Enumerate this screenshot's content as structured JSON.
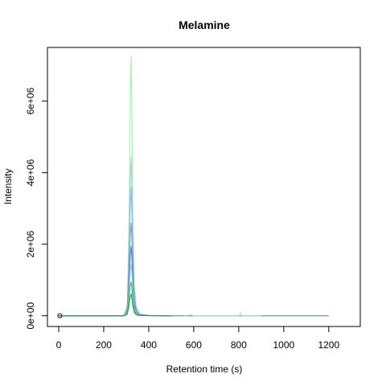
{
  "chart_data": {
    "type": "line",
    "title": "Melamine",
    "xlabel": "Retention time (s)",
    "ylabel": "Intensity",
    "xlim": [
      -50,
      1340
    ],
    "ylim": [
      -300000,
      7500000
    ],
    "x_ticks": [
      {
        "value": 0,
        "label": "0"
      },
      {
        "value": 200,
        "label": "200"
      },
      {
        "value": 400,
        "label": "400"
      },
      {
        "value": 600,
        "label": "600"
      },
      {
        "value": 800,
        "label": "800"
      },
      {
        "value": 1000,
        "label": "1000"
      },
      {
        "value": 1200,
        "label": "1200"
      }
    ],
    "y_ticks": [
      {
        "value": 0,
        "label": "0e+00"
      },
      {
        "value": 2000000,
        "label": "2e+06"
      },
      {
        "value": 4000000,
        "label": "4e+06"
      },
      {
        "value": 6000000,
        "label": "6e+06"
      }
    ],
    "grid": false,
    "legend": "none",
    "series": [
      {
        "color": "#90ee90",
        "x": [
          0,
          100,
          200,
          290,
          305,
          312,
          318,
          322,
          326,
          330,
          336,
          345,
          360,
          400,
          500
        ],
        "y": [
          0,
          0,
          0,
          0,
          300000,
          2500000,
          6000000,
          7250000,
          5200000,
          2800000,
          900000,
          250000,
          60000,
          10000,
          0
        ]
      },
      {
        "color": "#9fbfe8",
        "x": [
          0,
          100,
          200,
          290,
          305,
          312,
          318,
          322,
          326,
          330,
          336,
          345,
          360,
          400,
          500
        ],
        "y": [
          0,
          0,
          0,
          0,
          250000,
          1800000,
          3800000,
          4450000,
          3400000,
          1900000,
          700000,
          200000,
          50000,
          8000,
          0
        ]
      },
      {
        "color": "#8fb0ea",
        "x": [
          0,
          100,
          200,
          290,
          305,
          312,
          318,
          322,
          326,
          330,
          336,
          345,
          360,
          400,
          500
        ],
        "y": [
          0,
          0,
          0,
          0,
          200000,
          1400000,
          3000000,
          3600000,
          2700000,
          1500000,
          550000,
          160000,
          40000,
          6000,
          0
        ]
      },
      {
        "color": "#6d8fd6",
        "x": [
          0,
          100,
          200,
          290,
          305,
          312,
          318,
          322,
          326,
          330,
          336,
          345,
          360,
          400,
          500
        ],
        "y": [
          0,
          0,
          0,
          0,
          160000,
          1100000,
          2300000,
          2600000,
          2000000,
          1100000,
          400000,
          120000,
          30000,
          5000,
          0
        ]
      },
      {
        "color": "#4a72c8",
        "x": [
          0,
          100,
          200,
          290,
          305,
          312,
          318,
          322,
          326,
          330,
          336,
          345,
          360,
          400,
          500
        ],
        "y": [
          0,
          0,
          0,
          0,
          120000,
          800000,
          1700000,
          1950000,
          1500000,
          800000,
          300000,
          90000,
          20000,
          4000,
          0
        ]
      },
      {
        "color": "#8fe0b0",
        "x": [
          0,
          100,
          200,
          290,
          305,
          312,
          318,
          322,
          326,
          330,
          336,
          345,
          360,
          400,
          500
        ],
        "y": [
          0,
          0,
          0,
          0,
          100000,
          600000,
          1250000,
          1450000,
          1100000,
          600000,
          220000,
          70000,
          15000,
          3000,
          0
        ]
      },
      {
        "color": "#2ea84a",
        "x": [
          0,
          100,
          200,
          290,
          305,
          312,
          318,
          322,
          326,
          330,
          336,
          345,
          360,
          400,
          500
        ],
        "y": [
          0,
          0,
          0,
          0,
          60000,
          400000,
          850000,
          950000,
          700000,
          380000,
          140000,
          40000,
          10000,
          2000,
          0
        ]
      },
      {
        "color": "#1e8a5a",
        "x": [
          0,
          100,
          200,
          290,
          305,
          312,
          318,
          322,
          326,
          330,
          336,
          345,
          360,
          400,
          500,
          600,
          800,
          1000,
          1200
        ],
        "y": [
          0,
          0,
          0,
          0,
          40000,
          260000,
          540000,
          600000,
          450000,
          250000,
          90000,
          25000,
          6000,
          1500,
          0,
          0,
          0,
          0,
          0
        ]
      },
      {
        "color": "#b5f0a8",
        "x": [
          560,
          590,
          600,
          700,
          800,
          808,
          815,
          900
        ],
        "y": [
          0,
          40000,
          0,
          0,
          0,
          90000,
          0,
          0
        ]
      }
    ],
    "points": [
      {
        "x": 5,
        "y": 0,
        "marker": "open-circle"
      }
    ]
  }
}
